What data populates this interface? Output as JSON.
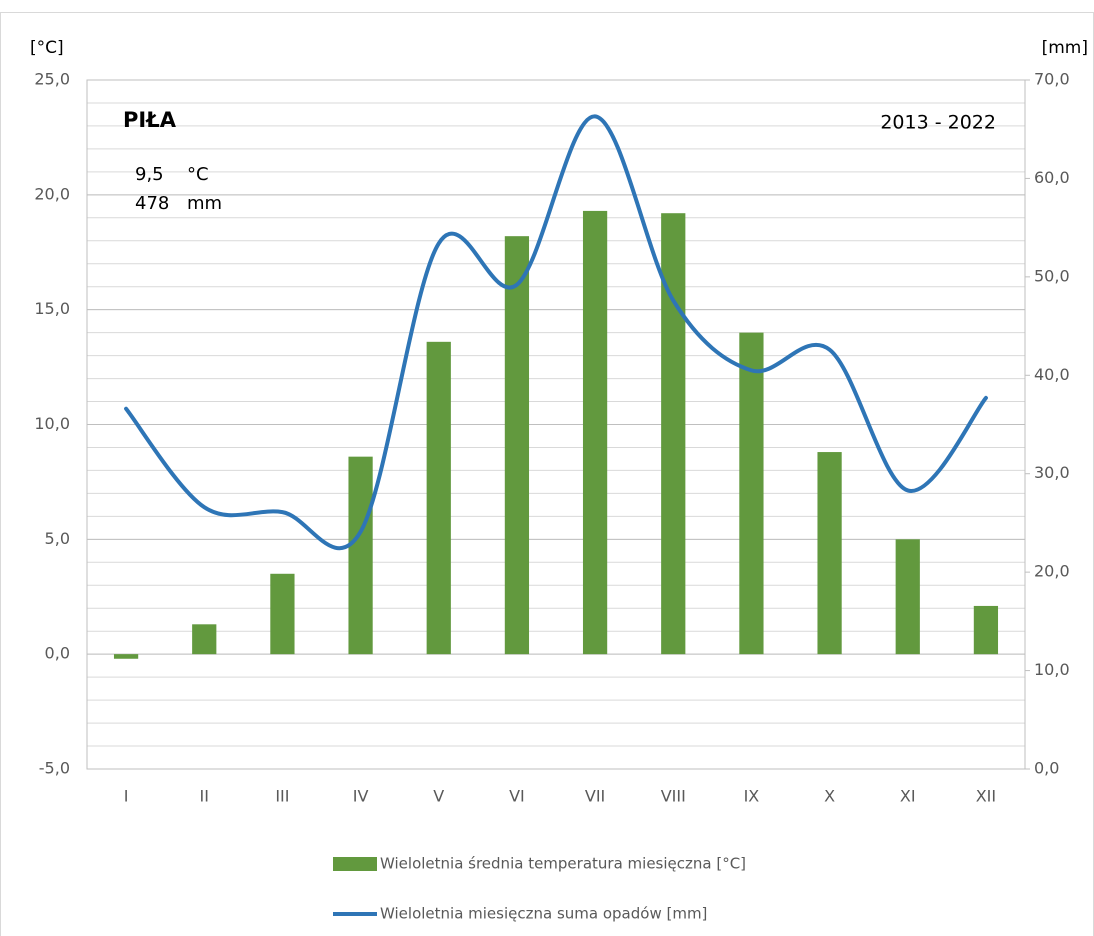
{
  "chart_data": {
    "type": "bar_line",
    "title": "PIŁA",
    "annotations": {
      "period": "2013 - 2022",
      "mean_temperature": "9,5",
      "temperature_unit": "°C",
      "total_precipitation": "478",
      "precipitation_unit": "mm"
    },
    "y_label": "[°C]",
    "y2_label": "[mm]",
    "categories": [
      "I",
      "II",
      "III",
      "IV",
      "V",
      "VI",
      "VII",
      "VIII",
      "IX",
      "X",
      "XI",
      "XII"
    ],
    "series": [
      {
        "name": "Wieloletnia średnia temperatura miesięczna [°C]",
        "type": "bar",
        "color": "#62993e",
        "values": [
          -0.2,
          1.3,
          3.5,
          8.6,
          13.6,
          18.2,
          19.3,
          19.2,
          14.0,
          8.8,
          5.0,
          2.1
        ]
      },
      {
        "name": "Wieloletnia miesięczna suma opadów [mm]",
        "type": "line",
        "axis": "y2",
        "color": "#2e75b6",
        "smooth": true,
        "values": [
          36.6,
          26.6,
          26.1,
          24.1,
          53.4,
          49.2,
          66.3,
          47.6,
          40.5,
          42.6,
          28.3,
          37.7
        ]
      }
    ],
    "ylim": [
      -5,
      25
    ],
    "yticks": [
      {
        "value": -5,
        "label": "-5,0"
      },
      {
        "value": 0,
        "label": "0,0"
      },
      {
        "value": 5,
        "label": "5,0"
      },
      {
        "value": 10,
        "label": "10,0"
      },
      {
        "value": 15,
        "label": "15,0"
      },
      {
        "value": 20,
        "label": "20,0"
      },
      {
        "value": 25,
        "label": "25,0"
      }
    ],
    "ygrid_step": 1,
    "y2lim": [
      0,
      70
    ],
    "y2ticks": [
      {
        "value": 0,
        "label": "0,0"
      },
      {
        "value": 10,
        "label": "10,0"
      },
      {
        "value": 20,
        "label": "20,0"
      },
      {
        "value": 30,
        "label": "30,0"
      },
      {
        "value": 40,
        "label": "40,0"
      },
      {
        "value": 50,
        "label": "50,0"
      },
      {
        "value": 60,
        "label": "60,0"
      },
      {
        "value": 70,
        "label": "70,0"
      }
    ],
    "grid": true,
    "legend": "bottom"
  }
}
